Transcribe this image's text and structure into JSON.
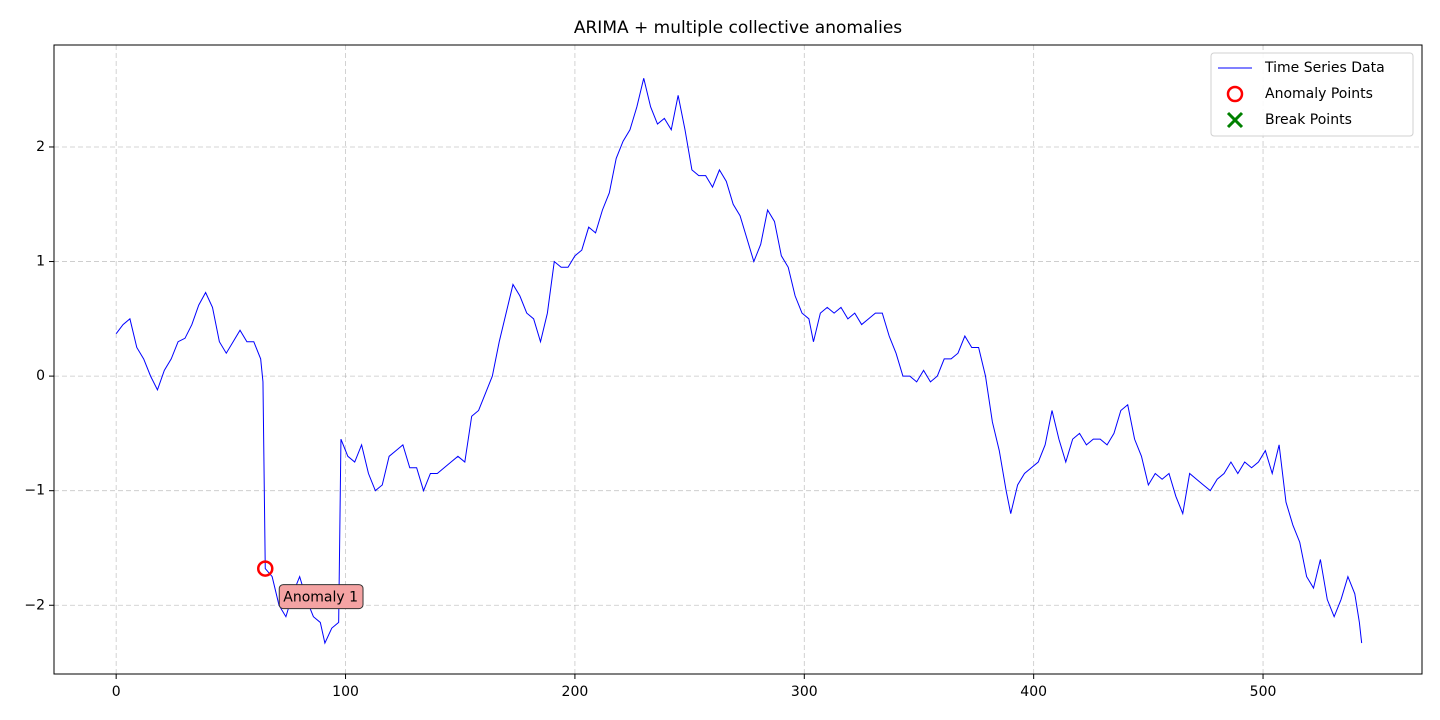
{
  "chart_data": {
    "type": "line",
    "title": "ARIMA + multiple collective anomalies",
    "x": [
      0,
      3,
      6,
      9,
      12,
      15,
      18,
      21,
      24,
      27,
      30,
      33,
      36,
      39,
      42,
      45,
      48,
      51,
      54,
      57,
      60,
      63,
      64,
      65,
      68,
      71,
      74,
      77,
      80,
      83,
      86,
      89,
      91,
      94,
      97,
      98,
      101,
      104,
      107,
      110,
      113,
      116,
      119,
      122,
      125,
      128,
      131,
      134,
      137,
      140,
      143,
      146,
      149,
      152,
      155,
      158,
      161,
      164,
      167,
      170,
      173,
      176,
      179,
      182,
      185,
      188,
      191,
      194,
      197,
      200,
      203,
      206,
      209,
      212,
      215,
      218,
      221,
      224,
      227,
      230,
      233,
      236,
      239,
      242,
      245,
      248,
      251,
      254,
      257,
      260,
      263,
      266,
      269,
      272,
      275,
      278,
      281,
      284,
      287,
      290,
      293,
      296,
      299,
      302,
      304,
      307,
      310,
      313,
      316,
      319,
      322,
      325,
      328,
      331,
      334,
      337,
      340,
      343,
      346,
      349,
      352,
      355,
      358,
      361,
      364,
      367,
      370,
      373,
      376,
      379,
      382,
      385,
      388,
      390,
      393,
      396,
      399,
      402,
      405,
      408,
      411,
      414,
      417,
      420,
      423,
      426,
      429,
      432,
      435,
      438,
      441,
      444,
      447,
      450,
      453,
      456,
      459,
      462,
      465,
      468,
      471,
      474,
      477,
      480,
      483,
      486,
      489,
      492,
      495,
      498,
      501,
      504,
      507,
      510,
      513,
      516,
      519,
      522,
      525,
      528,
      531,
      534,
      537,
      540,
      542,
      543
    ],
    "series": [
      {
        "name": "Time Series Data",
        "color": "#0000ff",
        "marker": "line",
        "values": [
          0.37,
          0.45,
          0.5,
          0.25,
          0.15,
          0.0,
          -0.12,
          0.05,
          0.15,
          0.3,
          0.33,
          0.45,
          0.62,
          0.73,
          0.6,
          0.3,
          0.2,
          0.3,
          0.4,
          0.3,
          0.3,
          0.15,
          -0.05,
          -1.68,
          -1.75,
          -2.0,
          -2.1,
          -1.9,
          -1.75,
          -1.95,
          -2.1,
          -2.15,
          -2.33,
          -2.2,
          -2.15,
          -0.55,
          -0.7,
          -0.75,
          -0.6,
          -0.85,
          -1.0,
          -0.95,
          -0.7,
          -0.65,
          -0.6,
          -0.8,
          -0.8,
          -1.0,
          -0.85,
          -0.85,
          -0.8,
          -0.75,
          -0.7,
          -0.75,
          -0.35,
          -0.3,
          -0.15,
          0.0,
          0.3,
          0.55,
          0.8,
          0.7,
          0.55,
          0.5,
          0.3,
          0.55,
          1.0,
          0.95,
          0.95,
          1.05,
          1.1,
          1.3,
          1.25,
          1.45,
          1.6,
          1.9,
          2.05,
          2.15,
          2.35,
          2.6,
          2.35,
          2.2,
          2.25,
          2.15,
          2.45,
          2.15,
          1.8,
          1.75,
          1.75,
          1.65,
          1.8,
          1.7,
          1.5,
          1.4,
          1.2,
          1.0,
          1.15,
          1.45,
          1.35,
          1.05,
          0.95,
          0.7,
          0.55,
          0.5,
          0.3,
          0.55,
          0.6,
          0.55,
          0.6,
          0.5,
          0.55,
          0.45,
          0.5,
          0.55,
          0.55,
          0.35,
          0.2,
          0.0,
          0.0,
          -0.05,
          0.05,
          -0.05,
          0.0,
          0.15,
          0.15,
          0.2,
          0.35,
          0.25,
          0.25,
          0.0,
          -0.4,
          -0.65,
          -1.0,
          -1.2,
          -0.95,
          -0.85,
          -0.8,
          -0.75,
          -0.6,
          -0.3,
          -0.55,
          -0.75,
          -0.55,
          -0.5,
          -0.6,
          -0.55,
          -0.55,
          -0.6,
          -0.5,
          -0.3,
          -0.25,
          -0.55,
          -0.7,
          -0.95,
          -0.85,
          -0.9,
          -0.85,
          -1.05,
          -1.2,
          -0.85,
          -0.9,
          -0.95,
          -1.0,
          -0.9,
          -0.85,
          -0.75,
          -0.85,
          -0.75,
          -0.8,
          -0.75,
          -0.65,
          -0.85,
          -0.6,
          -1.1,
          -1.3,
          -1.45,
          -1.75,
          -1.85,
          -1.6,
          -1.95,
          -2.1,
          -1.95,
          -1.75,
          -1.9,
          -2.15,
          -2.33
        ]
      },
      {
        "name": "Anomaly Points",
        "color": "#ff0000",
        "marker": "circle",
        "x": [
          65
        ],
        "values": [
          -1.68
        ]
      },
      {
        "name": "Break Points",
        "color": "#008000",
        "marker": "x",
        "x": [],
        "values": []
      }
    ],
    "annotations": [
      "Anomaly 1"
    ],
    "xlim": [
      -27.1,
      569.3
    ],
    "ylim": [
      -2.6,
      2.89
    ],
    "xticks": [
      0,
      100,
      200,
      300,
      400,
      500
    ],
    "yticks": [
      {
        "value": -2,
        "label": "−2"
      },
      {
        "value": -1,
        "label": "−1"
      },
      0,
      1,
      2
    ],
    "grid": true,
    "legend": "upper right"
  }
}
